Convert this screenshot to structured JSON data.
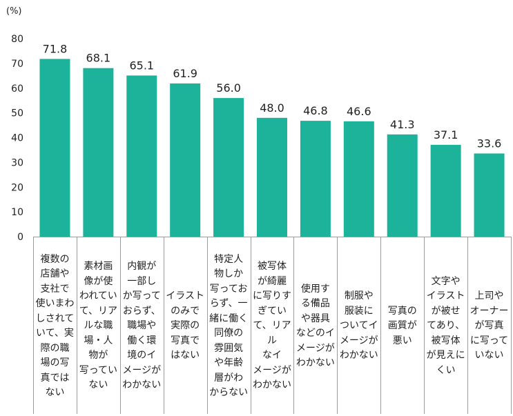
{
  "chart_data": {
    "type": "bar",
    "unit_label": "(%)",
    "categories": [
      "複数の\n店舗や\n支社で\n使いまわ\nしされて\nいて、実\n際の職\n場の写\n真では\nない",
      "素材画\n像が使\nわれてい\nて、リア\nルな職\n場・人\n物が\n写ってい\nない",
      "内観が\n一部し\nか写って\nおらず、\n職場や\n働く環\n境のイ\nメージが\nわかない",
      "イラスト\nのみで\n実際の\n写真で\nはない",
      "特定人\n物しか\n写ってお\nらず、一\n緒に働く\n同僚の\n雰囲気\nや年齢\n層がわ\nからない",
      "被写体\nが綺麗\nに写りす\nぎてい\nて、リアル\nなイ\nメージが\nわかない",
      "使用す\nる備品\nや器具\nなどのイ\nメージが\nわかない",
      "制服や\n服装に\nついてイ\nメージが\nわかない",
      "写真の\n画質が\n悪い",
      "文字や\nイラスト\nが被せ\nてあり、\n被写体\nが見えに\nくい",
      "上司や\nオーナー\nが写真\nに写って\nいない"
    ],
    "values": [
      71.8,
      68.1,
      65.1,
      61.9,
      56.0,
      48.0,
      46.8,
      46.6,
      41.3,
      37.1,
      33.6
    ],
    "value_labels": [
      "71.8",
      "68.1",
      "65.1",
      "61.9",
      "56.0",
      "48.0",
      "46.8",
      "46.6",
      "41.3",
      "37.1",
      "33.6"
    ],
    "y_ticks": [
      0,
      10,
      20,
      30,
      40,
      50,
      60,
      70,
      80
    ],
    "ylim": [
      0,
      80
    ],
    "bar_color": "#1db39a",
    "grid": false,
    "title": "",
    "xlabel": "",
    "ylabel": ""
  }
}
